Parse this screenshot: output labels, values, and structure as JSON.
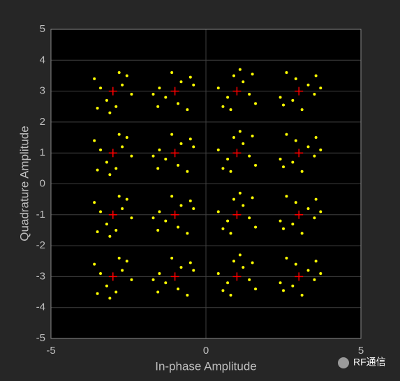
{
  "chart_data": {
    "type": "scatter",
    "xlabel": "In-phase Amplitude",
    "ylabel": "Quadrature Amplitude",
    "xlim": [
      -5,
      5
    ],
    "ylim": [
      -5,
      5
    ],
    "xticks": [
      -5,
      0,
      5
    ],
    "yticks": [
      -5,
      -4,
      -3,
      -2,
      -1,
      0,
      1,
      2,
      3,
      4,
      5
    ],
    "grid": true,
    "series": [
      {
        "color": "#ffff00",
        "marker": "dot",
        "x": [
          -2.7,
          -3.4,
          -2.9,
          -3.2,
          -2.4,
          -3.6,
          -2.8,
          -3.1,
          -2.55,
          -3.5,
          -0.8,
          -0.9,
          -1.5,
          -1.3,
          -1.1,
          -0.6,
          -0.4,
          -1.7,
          -0.5,
          -1.55,
          0.7,
          1.4,
          0.9,
          1.2,
          0.4,
          1.6,
          0.8,
          1.1,
          0.55,
          1.5,
          2.8,
          2.9,
          3.5,
          3.3,
          3.1,
          2.6,
          2.4,
          3.7,
          2.5,
          3.55,
          -2.7,
          -3.4,
          -2.9,
          -3.2,
          -2.4,
          -3.6,
          -2.8,
          -3.1,
          -2.55,
          -3.5,
          -0.8,
          -0.9,
          -1.5,
          -1.3,
          -1.1,
          -0.6,
          -0.4,
          -1.7,
          -0.5,
          -1.55,
          0.7,
          1.4,
          0.9,
          1.2,
          0.4,
          1.6,
          0.8,
          1.1,
          0.55,
          1.5,
          2.8,
          2.9,
          3.5,
          3.3,
          3.1,
          2.6,
          2.4,
          3.7,
          2.5,
          3.55,
          -2.7,
          -3.4,
          -2.9,
          -3.2,
          -2.4,
          -3.6,
          -2.8,
          -3.1,
          -2.55,
          -3.5,
          -0.8,
          -0.9,
          -1.5,
          -1.3,
          -1.1,
          -0.6,
          -0.4,
          -1.7,
          -0.5,
          -1.55,
          0.7,
          1.4,
          0.9,
          1.2,
          0.4,
          1.6,
          0.8,
          1.1,
          0.55,
          1.5,
          2.8,
          2.9,
          3.5,
          3.3,
          3.1,
          2.6,
          2.4,
          3.7,
          2.5,
          3.55,
          -2.7,
          -3.4,
          -2.9,
          -3.2,
          -2.4,
          -3.6,
          -2.8,
          -3.1,
          -2.55,
          -3.5,
          -0.8,
          -0.9,
          -1.5,
          -1.3,
          -1.1,
          -0.6,
          -0.4,
          -1.7,
          -0.5,
          -1.55,
          0.7,
          1.4,
          0.9,
          1.2,
          0.4,
          1.6,
          0.8,
          1.1,
          0.55,
          1.5,
          2.8,
          2.9,
          3.5,
          3.3,
          3.1,
          2.6,
          2.4,
          3.7,
          2.5,
          3.55
        ],
        "values": [
          3.2,
          3.1,
          2.5,
          2.7,
          2.9,
          3.4,
          3.6,
          2.3,
          3.5,
          2.45,
          3.3,
          2.6,
          3.1,
          2.8,
          3.6,
          2.4,
          3.2,
          2.9,
          3.45,
          2.5,
          2.8,
          2.9,
          3.5,
          3.3,
          3.1,
          2.6,
          2.4,
          3.7,
          2.5,
          3.55,
          2.7,
          3.4,
          2.9,
          3.2,
          2.4,
          3.6,
          2.8,
          3.1,
          2.55,
          3.5,
          1.2,
          1.1,
          0.5,
          0.7,
          0.9,
          1.4,
          1.6,
          0.3,
          1.5,
          0.45,
          1.3,
          0.6,
          1.1,
          0.8,
          1.6,
          0.4,
          1.2,
          0.9,
          1.45,
          0.5,
          0.8,
          0.9,
          1.5,
          1.3,
          1.1,
          0.6,
          0.4,
          1.7,
          0.5,
          1.55,
          0.7,
          1.4,
          0.9,
          1.2,
          0.4,
          1.6,
          0.8,
          1.1,
          0.55,
          1.5,
          -0.8,
          -0.9,
          -1.5,
          -1.3,
          -1.1,
          -0.6,
          -0.4,
          -1.7,
          -0.5,
          -1.55,
          -0.7,
          -1.4,
          -0.9,
          -1.2,
          -0.4,
          -1.6,
          -0.8,
          -1.1,
          -0.55,
          -1.5,
          -1.2,
          -1.1,
          -0.5,
          -0.7,
          -0.9,
          -1.4,
          -1.6,
          -0.3,
          -1.45,
          -0.45,
          -1.3,
          -0.6,
          -1.1,
          -0.8,
          -1.6,
          -0.4,
          -1.2,
          -0.9,
          -1.45,
          -0.5,
          -2.8,
          -2.9,
          -3.5,
          -3.3,
          -3.1,
          -2.6,
          -2.4,
          -3.7,
          -2.5,
          -3.55,
          -2.7,
          -3.4,
          -2.9,
          -3.2,
          -2.4,
          -3.6,
          -2.8,
          -3.1,
          -2.55,
          -3.5,
          -3.2,
          -3.1,
          -2.5,
          -2.7,
          -2.9,
          -3.4,
          -3.6,
          -2.3,
          -3.45,
          -2.55,
          -3.3,
          -2.6,
          -3.1,
          -2.8,
          -3.6,
          -2.4,
          -3.2,
          -2.9,
          -3.45,
          -2.5
        ]
      },
      {
        "color": "#ff0000",
        "marker": "plus",
        "x": [
          -3,
          -1,
          1,
          3,
          -3,
          -1,
          1,
          3,
          -3,
          -1,
          1,
          3,
          -3,
          -1,
          1,
          3
        ],
        "values": [
          3,
          3,
          3,
          3,
          1,
          1,
          1,
          1,
          -1,
          -1,
          -1,
          -1,
          -3,
          -3,
          -3,
          -3
        ]
      }
    ],
    "watermark": "RF通信"
  }
}
